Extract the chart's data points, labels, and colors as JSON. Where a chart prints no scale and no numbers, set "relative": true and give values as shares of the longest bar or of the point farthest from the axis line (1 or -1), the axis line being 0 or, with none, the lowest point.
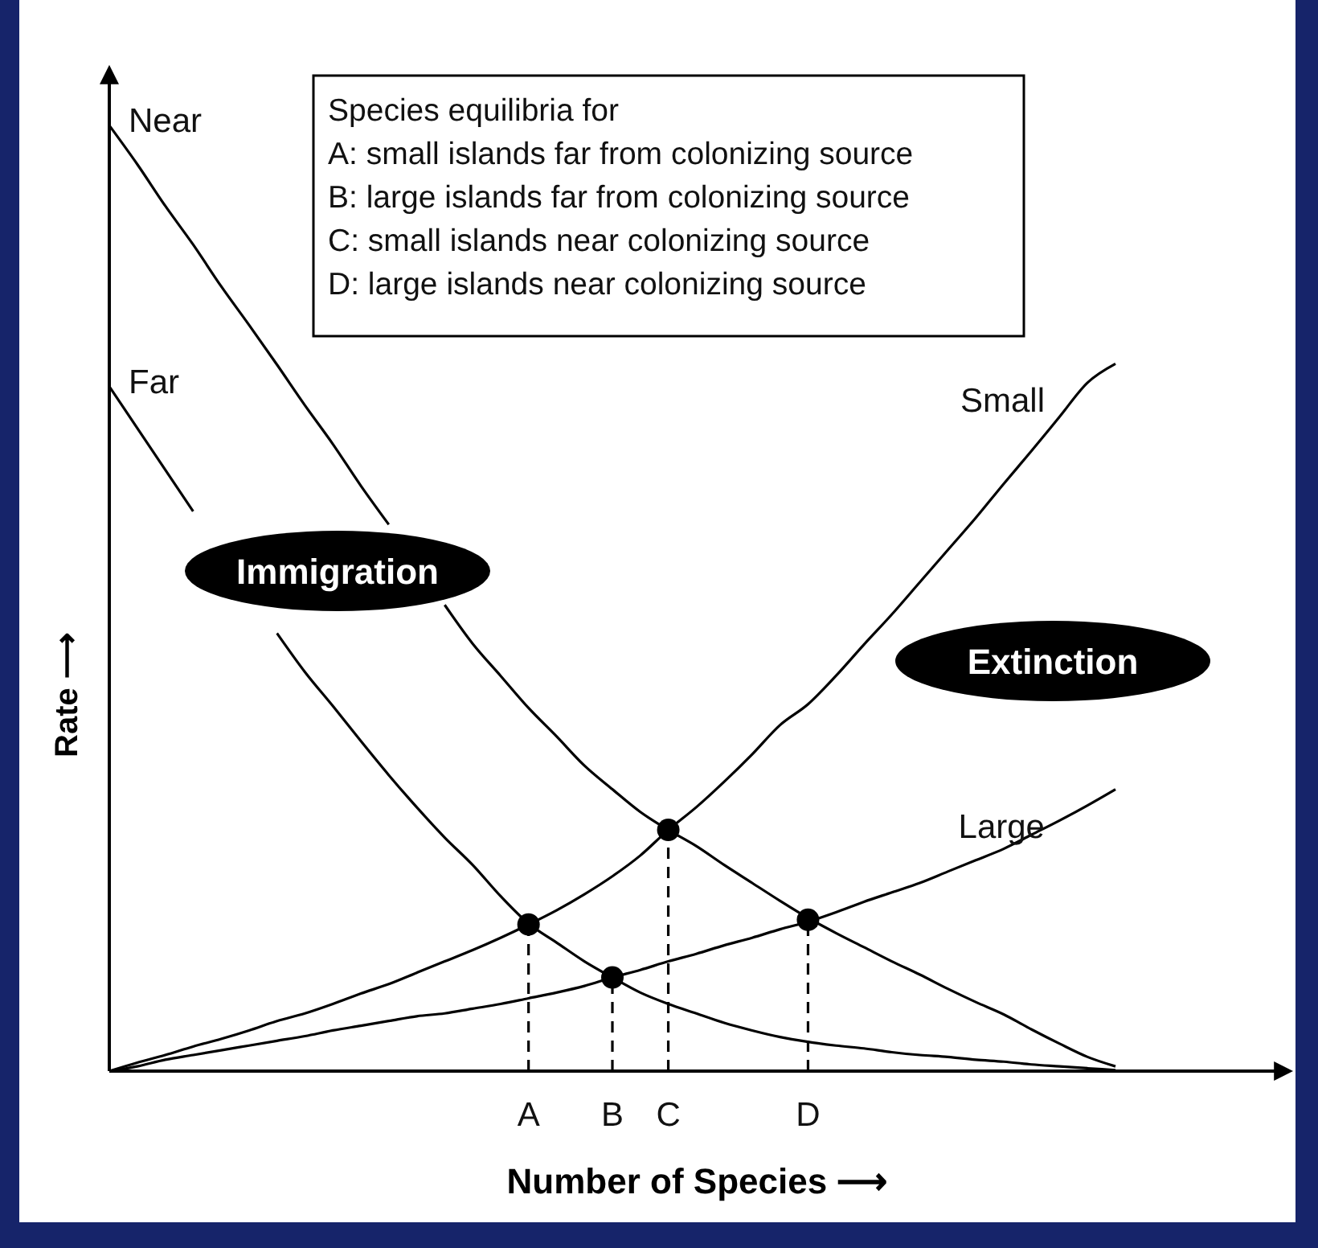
{
  "chart_data": {
    "type": "line",
    "relative": true,
    "xlabel": "Number of Species ⟶",
    "ylabel": "Rate ⟶",
    "categories": [
      null,
      null,
      null,
      null,
      null,
      null,
      null,
      null,
      null,
      null,
      null,
      null,
      null,
      null,
      null,
      "A",
      null,
      null,
      "B",
      null,
      "C",
      null,
      null,
      null,
      null,
      "D",
      null,
      null,
      null,
      null,
      null,
      null,
      null,
      null,
      null,
      null,
      null
    ],
    "series": [
      {
        "name": "Near",
        "color": "#000000",
        "values": [
          1,
          0.959,
          0.915,
          0.874,
          0.83,
          0.789,
          0.747,
          0.704,
          0.663,
          0.619,
          0.578,
          null,
          0.493,
          0.452,
          0.418,
          0.384,
          0.354,
          0.323,
          0.298,
          0.274,
          0.255,
          0.238,
          0.218,
          0.199,
          0.18,
          0.162,
          0.146,
          0.131,
          0.116,
          0.102,
          0.087,
          0.073,
          0.06,
          0.044,
          0.029,
          0.015,
          0.005
        ]
      },
      {
        "name": "Far",
        "color": "#000000",
        "values": [
          0.724,
          0.68,
          0.636,
          0.592,
          null,
          null,
          0.463,
          0.422,
          0.386,
          0.349,
          0.313,
          0.279,
          0.247,
          0.218,
          0.185,
          0.156,
          0.136,
          0.116,
          0.099,
          0.083,
          0.071,
          0.061,
          0.051,
          0.043,
          0.036,
          0.031,
          0.027,
          0.024,
          0.02,
          0.017,
          0.015,
          0.012,
          0.01,
          0.007,
          0.005,
          0.003,
          0.001
        ]
      },
      {
        "name": "Small",
        "color": "#000000",
        "values": [
          0,
          0.009,
          0.017,
          0.026,
          0.034,
          0.043,
          0.053,
          0.061,
          0.071,
          0.082,
          0.092,
          0.104,
          0.116,
          0.128,
          0.141,
          0.155,
          0.17,
          0.187,
          0.206,
          0.228,
          0.255,
          0.279,
          0.306,
          0.335,
          0.366,
          0.388,
          0.418,
          0.451,
          0.483,
          0.517,
          0.551,
          0.585,
          0.621,
          0.656,
          0.692,
          0.728,
          0.748
        ]
      },
      {
        "name": "Large",
        "color": "#000000",
        "values": [
          0,
          0.005,
          0.012,
          0.017,
          0.022,
          0.027,
          0.032,
          0.037,
          0.043,
          0.048,
          0.053,
          0.058,
          0.061,
          0.066,
          0.071,
          0.077,
          0.083,
          0.09,
          0.099,
          0.107,
          0.116,
          0.124,
          0.133,
          0.141,
          0.15,
          0.158,
          0.168,
          0.179,
          0.189,
          0.199,
          0.211,
          0.223,
          0.235,
          0.25,
          0.265,
          0.281,
          0.298
        ]
      },
      {
        "type": "lollipop",
        "color": "#000000",
        "x": [
          "A",
          "B",
          "C",
          "D"
        ],
        "values": [
          0.155,
          0.099,
          0.255,
          0.16
        ],
        "marker": "circle",
        "line_style": "dashed"
      }
    ],
    "annotations": [
      "Species equilibria for\nA: small islands far from colonizing source\nB: large islands far from colonizing source\nC: small islands near colonizing source\nD: large islands near colonizing source",
      "Immigration",
      "Extinction"
    ],
    "marker": "none"
  }
}
